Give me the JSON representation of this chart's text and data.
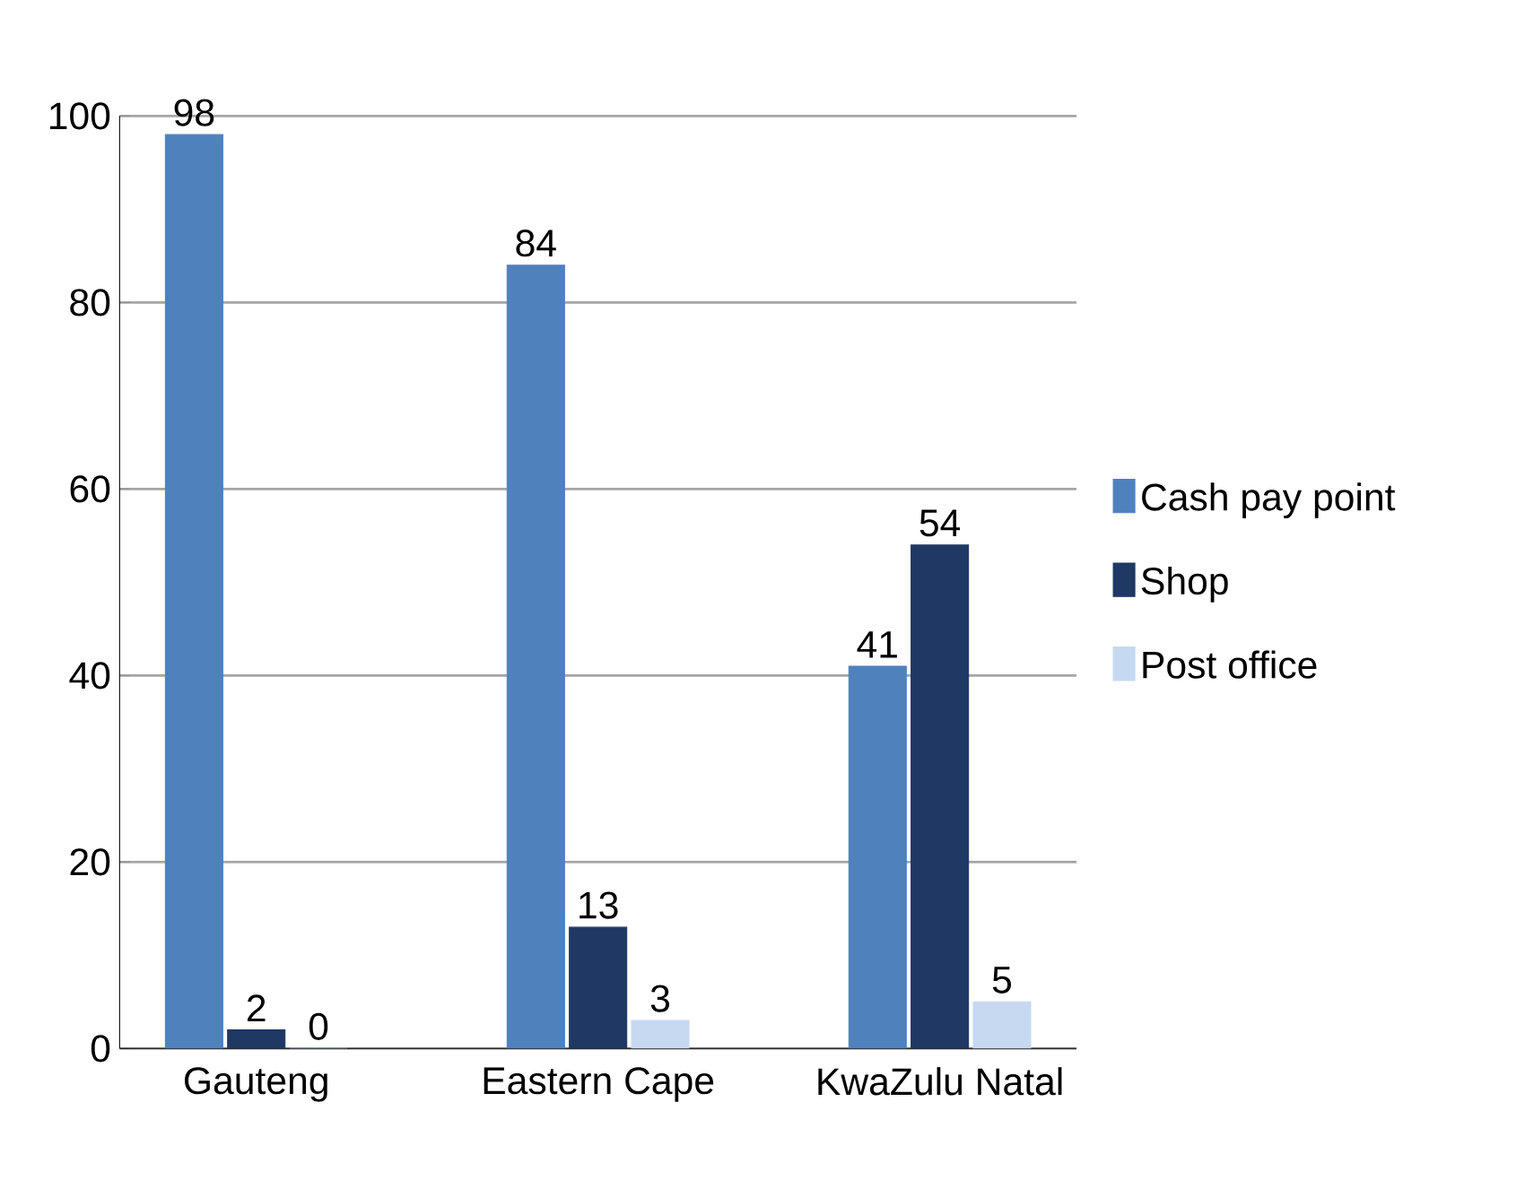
{
  "chart_data": {
    "type": "bar",
    "categories": [
      "Gauteng",
      "Eastern Cape",
      "KwaZulu Natal"
    ],
    "series": [
      {
        "name": "Cash pay point",
        "color": "#4f81bd",
        "values": [
          98,
          84,
          41
        ]
      },
      {
        "name": "Shop",
        "color": "#1f3864",
        "values": [
          2,
          13,
          54
        ]
      },
      {
        "name": "Post office",
        "color": "#c6d9f1",
        "values": [
          0,
          3,
          5
        ]
      }
    ],
    "ylim": [
      0,
      100
    ],
    "yticks": [
      0,
      20,
      40,
      60,
      80,
      100
    ],
    "grid": "y",
    "legend": "right",
    "data_labels": true
  }
}
